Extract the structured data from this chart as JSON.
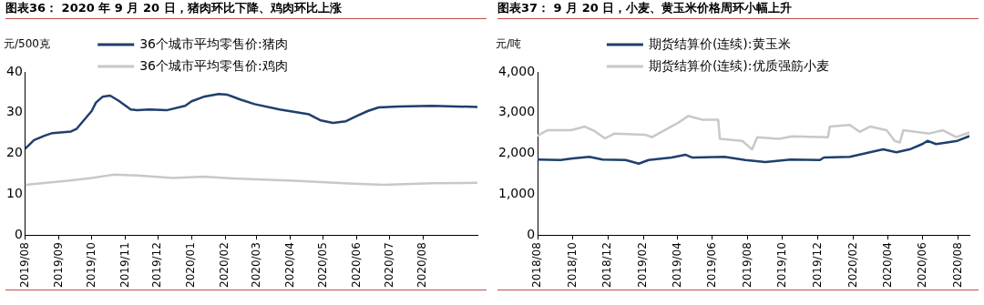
{
  "chart_data": [
    {
      "type": "line",
      "title": "图表36：  2020 年 9 月 20 日，猪肉环比下降、鸡肉环比上涨",
      "ylabel": "元/500克",
      "legend": "top",
      "grid": false,
      "marker": "none",
      "line_style": "solid",
      "xlim": [
        "2019-08-01",
        "2020-09-20"
      ],
      "ylim": [
        0,
        40
      ],
      "yticks": [
        0,
        10,
        20,
        30,
        40
      ],
      "xticks": [
        {
          "value": "2019-08",
          "label": "2019/08"
        },
        {
          "value": "2019-09",
          "label": "2019/09"
        },
        {
          "value": "2019-10",
          "label": "2019/10"
        },
        {
          "value": "2019-11",
          "label": "2019/11"
        },
        {
          "value": "2019-12",
          "label": "2019/12"
        },
        {
          "value": "2020-01",
          "label": "2020/01"
        },
        {
          "value": "2020-02",
          "label": "2020/02"
        },
        {
          "value": "2020-03",
          "label": "2020/03"
        },
        {
          "value": "2020-04",
          "label": "2020/04"
        },
        {
          "value": "2020-05",
          "label": "2020/05"
        },
        {
          "value": "2020-06",
          "label": "2020/06"
        },
        {
          "value": "2020-07",
          "label": "2020/07"
        },
        {
          "value": "2020-08",
          "label": "2020/08"
        }
      ],
      "series": [
        {
          "name": "36个城市平均零售价:猪肉",
          "color": "#1f3f6e",
          "x": [
            "2019-08-01",
            "2019-08-09",
            "2019-08-19",
            "2019-08-26",
            "2019-09-12",
            "2019-09-17",
            "2019-09-23",
            "2019-10-01",
            "2019-10-05",
            "2019-10-11",
            "2019-10-18",
            "2019-10-26",
            "2019-11-06",
            "2019-11-12",
            "2019-11-23",
            "2019-12-09",
            "2019-12-26",
            "2020-01-01",
            "2020-01-12",
            "2020-01-26",
            "2020-02-03",
            "2020-02-14",
            "2020-02-28",
            "2020-03-22",
            "2020-04-18",
            "2020-04-29",
            "2020-05-10",
            "2020-05-22",
            "2020-06-01",
            "2020-06-11",
            "2020-06-21",
            "2020-07-09",
            "2020-08-09",
            "2020-09-20"
          ],
          "values": [
            21.2,
            23.3,
            24.4,
            25,
            25.4,
            26,
            27.9,
            30.4,
            32.5,
            33.9,
            34.2,
            32.9,
            30.8,
            30.6,
            30.8,
            30.6,
            31.7,
            32.8,
            33.9,
            34.6,
            34.4,
            33.3,
            32.1,
            30.8,
            29.6,
            28.1,
            27.5,
            27.9,
            29.2,
            30.4,
            31.3,
            31.5,
            31.7,
            31.4
          ]
        },
        {
          "name": "36个城市平均零售价:鸡肉",
          "color": "#c8c8c8",
          "x": [
            "2019-08-01",
            "2019-09-09",
            "2019-10-01",
            "2019-10-21",
            "2019-11-12",
            "2019-12-15",
            "2020-01-12",
            "2020-02-08",
            "2020-04-04",
            "2020-05-29",
            "2020-06-26",
            "2020-08-09",
            "2020-09-20"
          ],
          "values": [
            12.3,
            13.3,
            14,
            14.8,
            14.6,
            14,
            14.3,
            13.9,
            13.3,
            12.6,
            12.3,
            12.7,
            12.8
          ]
        }
      ]
    },
    {
      "type": "line",
      "title": "图表37：  9 月 20 日，小麦、黄玉米价格周环小幅上升",
      "ylabel": "元/吨",
      "legend": "top",
      "grid": false,
      "marker": "none",
      "line_style": "solid",
      "xlim": [
        "2018-08-01",
        "2020-08-21"
      ],
      "ylim": [
        0,
        4000
      ],
      "yticks": [
        {
          "value": 0,
          "label": "0"
        },
        {
          "value": 1000,
          "label": "1,000"
        },
        {
          "value": 2000,
          "label": "2,000"
        },
        {
          "value": 3000,
          "label": "3,000"
        },
        {
          "value": 4000,
          "label": "4,000"
        }
      ],
      "xticks": [
        {
          "value": "2018-08",
          "label": "2018/08"
        },
        {
          "value": "2018-10",
          "label": "2018/10"
        },
        {
          "value": "2018-12",
          "label": "2018/12"
        },
        {
          "value": "2019-02",
          "label": "2019/02"
        },
        {
          "value": "2019-04",
          "label": "2019/04"
        },
        {
          "value": "2019-06",
          "label": "2019/06"
        },
        {
          "value": "2019-08",
          "label": "2019/08"
        },
        {
          "value": "2019-10",
          "label": "2019/10"
        },
        {
          "value": "2019-12",
          "label": "2019/12"
        },
        {
          "value": "2020-02",
          "label": "2020/02"
        },
        {
          "value": "2020-04",
          "label": "2020/04"
        },
        {
          "value": "2020-06",
          "label": "2020/06"
        },
        {
          "value": "2020-08",
          "label": "2020/08"
        }
      ],
      "series": [
        {
          "name": "期货结算价(连续):黄玉米",
          "color": "#1f3f6e",
          "x": [
            "2018-08-01",
            "2018-09-10",
            "2018-10-01",
            "2018-10-30",
            "2018-11-22",
            "2019-01-01",
            "2019-01-24",
            "2019-02-10",
            "2019-03-22",
            "2019-04-15",
            "2019-04-27",
            "2019-06-22",
            "2019-07-28",
            "2019-09-01",
            "2019-10-15",
            "2019-12-05",
            "2019-12-12",
            "2020-01-26",
            "2020-03-01",
            "2020-03-24",
            "2020-04-16",
            "2020-05-09",
            "2020-05-31",
            "2020-06-09",
            "2020-06-24",
            "2020-07-13",
            "2020-07-31",
            "2020-08-20"
          ],
          "values": [
            1850,
            1840,
            1880,
            1920,
            1850,
            1840,
            1750,
            1840,
            1900,
            1970,
            1900,
            1920,
            1840,
            1790,
            1850,
            1840,
            1900,
            1920,
            2030,
            2100,
            2030,
            2100,
            2230,
            2310,
            2230,
            2270,
            2310,
            2420
          ]
        },
        {
          "name": "期货结算价(连续):优质强筋小麦",
          "color": "#c8c8c8",
          "x": [
            "2018-08-01",
            "2018-08-18",
            "2018-09-28",
            "2018-10-22",
            "2018-11-08",
            "2018-11-26",
            "2018-12-13",
            "2019-02-04",
            "2019-02-16",
            "2019-03-16",
            "2019-04-02",
            "2019-04-20",
            "2019-05-14",
            "2019-06-11",
            "2019-06-14",
            "2019-07-23",
            "2019-08-09",
            "2019-08-18",
            "2019-09-25",
            "2019-10-18",
            "2019-12-19",
            "2019-12-22",
            "2020-01-26",
            "2020-02-12",
            "2020-03-01",
            "2020-03-30",
            "2020-04-13",
            "2020-04-22",
            "2020-04-28",
            "2020-06-12",
            "2020-07-06",
            "2020-07-29",
            "2020-08-20"
          ],
          "values": [
            2440,
            2570,
            2570,
            2660,
            2550,
            2370,
            2490,
            2460,
            2400,
            2620,
            2750,
            2920,
            2830,
            2830,
            2360,
            2310,
            2100,
            2400,
            2360,
            2420,
            2400,
            2660,
            2700,
            2530,
            2660,
            2570,
            2310,
            2270,
            2570,
            2490,
            2570,
            2400,
            2510
          ]
        }
      ]
    }
  ]
}
